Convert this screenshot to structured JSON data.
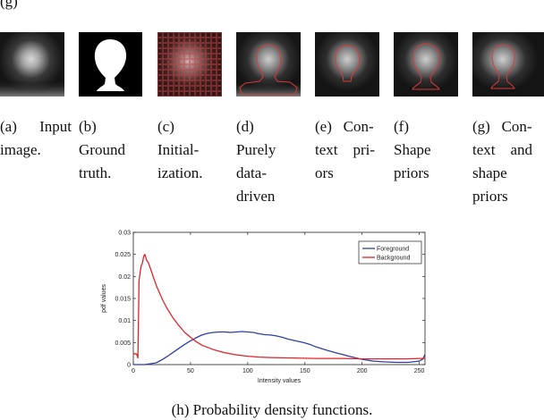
{
  "figure": {
    "top_caption_fragment": "(g)",
    "panels": [
      {
        "id": "a",
        "lines": [
          "(a)  Input",
          "image."
        ],
        "image": "input-image"
      },
      {
        "id": "b",
        "lines": [
          "(b)",
          "Ground",
          "truth."
        ],
        "image": "ground-truth-mask"
      },
      {
        "id": "c",
        "lines": [
          "(c)",
          "Initial-",
          "ization."
        ],
        "image": "initialization-grid"
      },
      {
        "id": "d",
        "lines": [
          "(d)",
          "Purely",
          "data-",
          "driven"
        ],
        "image": "data-driven-result"
      },
      {
        "id": "e",
        "lines": [
          "(e)   Con-",
          "text    pri-",
          "ors"
        ],
        "image": "context-priors-result"
      },
      {
        "id": "f",
        "lines": [
          "(f)",
          "Shape",
          "priors"
        ],
        "image": "shape-priors-result"
      },
      {
        "id": "g",
        "lines": [
          "(g)   Con-",
          "text    and",
          "shape",
          "priors"
        ],
        "image": "context-shape-priors-result"
      }
    ],
    "bottom_caption": "(h)  Probability density functions."
  },
  "colors": {
    "foreground": "#2e3fa0",
    "background": "#e32228",
    "contour": "#d63a3a"
  },
  "chart_data": {
    "type": "line",
    "title": "",
    "xlabel": "Intensity values",
    "ylabel": "pdf values",
    "xlim": [
      0,
      255
    ],
    "ylim": [
      0,
      0.03
    ],
    "x_ticks": [
      0,
      50,
      100,
      150,
      200,
      250
    ],
    "y_ticks": [
      0,
      0.005,
      0.01,
      0.015,
      0.02,
      0.025,
      0.03
    ],
    "x_tick_labels": [
      "0",
      "50",
      "100",
      "150",
      "200",
      "250"
    ],
    "y_tick_labels": [
      "0",
      "0.005",
      "0.01",
      "0.015",
      "0.02",
      "0.025",
      "0.03"
    ],
    "grid": false,
    "legend_position": "top-right",
    "series": [
      {
        "name": "Foreground",
        "color": "#2e3fa0",
        "x": [
          0,
          10,
          15,
          20,
          25,
          30,
          35,
          40,
          45,
          50,
          55,
          60,
          65,
          70,
          75,
          80,
          85,
          90,
          95,
          100,
          105,
          110,
          115,
          120,
          125,
          130,
          135,
          140,
          145,
          150,
          155,
          160,
          170,
          180,
          190,
          200,
          210,
          220,
          230,
          240,
          250,
          253,
          255
        ],
        "y": [
          0,
          0,
          0.0002,
          0.0004,
          0.0011,
          0.0019,
          0.0028,
          0.0037,
          0.0046,
          0.0054,
          0.0061,
          0.0067,
          0.0071,
          0.0073,
          0.0074,
          0.0074,
          0.0073,
          0.0074,
          0.0075,
          0.0074,
          0.0073,
          0.007,
          0.0068,
          0.0067,
          0.0065,
          0.0062,
          0.0058,
          0.0055,
          0.0052,
          0.0049,
          0.0045,
          0.004,
          0.0032,
          0.0025,
          0.0018,
          0.0012,
          0.0008,
          0.0006,
          0.0005,
          0.0005,
          0.0008,
          0.0012,
          0.0023
        ]
      },
      {
        "name": "Background",
        "color": "#e32228",
        "x": [
          0,
          3,
          4,
          5,
          6,
          7,
          8,
          9,
          10,
          11,
          12,
          13,
          14,
          16,
          18,
          20,
          23,
          26,
          30,
          35,
          40,
          45,
          50,
          55,
          60,
          70,
          80,
          90,
          100,
          110,
          120,
          140,
          160,
          180,
          200,
          220,
          240,
          250,
          255
        ],
        "y": [
          0.0025,
          0.0024,
          0.0015,
          0.019,
          0.021,
          0.0225,
          0.023,
          0.0245,
          0.025,
          0.0242,
          0.0235,
          0.0232,
          0.0225,
          0.021,
          0.0195,
          0.018,
          0.0162,
          0.0145,
          0.0125,
          0.0105,
          0.0088,
          0.0073,
          0.0062,
          0.0052,
          0.0044,
          0.0034,
          0.0027,
          0.0022,
          0.0019,
          0.0017,
          0.0016,
          0.0015,
          0.0014,
          0.0014,
          0.0013,
          0.0013,
          0.0013,
          0.0014,
          0.0014
        ]
      }
    ]
  }
}
